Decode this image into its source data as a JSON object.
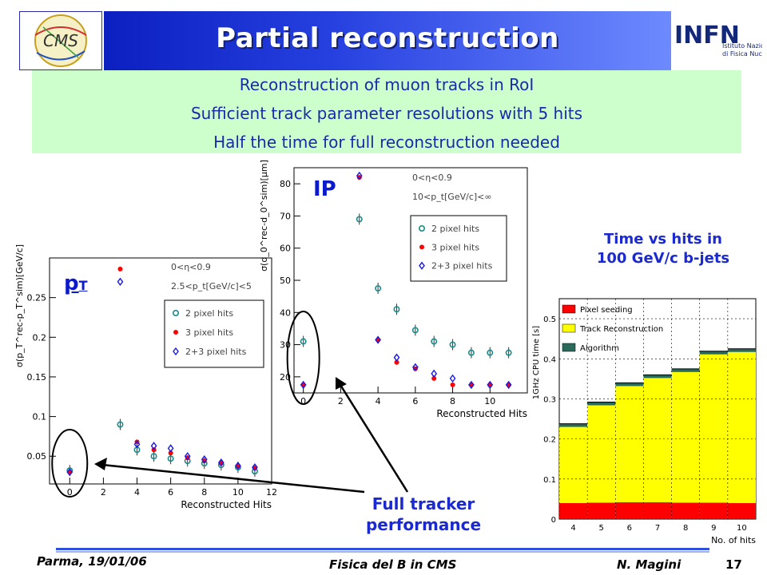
{
  "header": {
    "title": "Partial reconstruction",
    "cms_logo_text": "CMS",
    "infn_logo_text": "INFN",
    "infn_subtitle_1": "Istituto Nazionale",
    "infn_subtitle_2": "di Fisica Nucleare"
  },
  "bullets": [
    "Reconstruction of muon tracks in RoI",
    "Sufficient track parameter resolutions with 5 hits",
    "Half the time for full reconstruction needed"
  ],
  "labels": {
    "pt_label": "p",
    "pt_sub": "T",
    "ip_label": "IP",
    "time_note_1": "Time vs hits in",
    "time_note_2": "100 GeV/c b-jets",
    "tracker_note_1": "Full tracker",
    "tracker_note_2": "performance"
  },
  "footer": {
    "left": "Parma, 19/01/06",
    "center": "Fisica del B in CMS",
    "author": "N. Magini",
    "page": "17"
  },
  "colors": {
    "title_bar": "#1f3ad8",
    "green_box": "#ccffcc",
    "note_text": "#1a2ad0",
    "series_2pix": "#1a8a8a",
    "series_3pix": "#ff0000",
    "series_23pix": "#1a1ae6",
    "bar_pixel_seeding": "#ff0000",
    "bar_track_reco": "#ffff00",
    "bar_algorithm": "#2a6a5a"
  },
  "chart_data": [
    {
      "type": "scatter",
      "xlabel": "Reconstructed Hits",
      "ylabel": "σ(p_T^rec-p_T^sim)[GeV/c]",
      "xlim": [
        -1.2,
        12
      ],
      "ylim": [
        0.015,
        0.3
      ],
      "x_ticks": [
        0,
        2,
        4,
        6,
        8,
        10,
        12
      ],
      "y_ticks": [
        0.05,
        0.1,
        0.15,
        0.2,
        0.25
      ],
      "annotations": [
        "0<η<0.9",
        "2.5<p_t[GeV/c]<5"
      ],
      "legend_position": "top-right",
      "series": [
        {
          "name": "2 pixel hits",
          "x": [
            0,
            3,
            4,
            5,
            6,
            7,
            8,
            9,
            10,
            11
          ],
          "y": [
            0.032,
            0.09,
            0.058,
            0.05,
            0.047,
            0.044,
            0.041,
            0.039,
            0.036,
            0.031
          ]
        },
        {
          "name": "3 pixel hits",
          "x": [
            0,
            3,
            4,
            5,
            6,
            7,
            8,
            9,
            10,
            11
          ],
          "y": [
            0.03,
            0.286,
            0.068,
            0.058,
            0.054,
            0.048,
            0.044,
            0.041,
            0.037,
            0.035
          ]
        },
        {
          "name": "2+3 pixel hits",
          "x": [
            0,
            3,
            4,
            5,
            6,
            7,
            8,
            9,
            10,
            11
          ],
          "y": [
            0.03,
            0.27,
            0.065,
            0.063,
            0.06,
            0.05,
            0.046,
            0.042,
            0.038,
            0.036
          ]
        }
      ]
    },
    {
      "type": "scatter",
      "xlabel": "Reconstructed Hits",
      "ylabel": "σ(d_0^rec-d_0^sim)[μm]",
      "xlim": [
        -0.5,
        12
      ],
      "ylim": [
        15,
        85
      ],
      "x_ticks": [
        0,
        2,
        4,
        6,
        8,
        10
      ],
      "y_ticks": [
        20,
        30,
        40,
        50,
        60,
        70,
        80
      ],
      "annotations": [
        "0<η<0.9",
        "10<p_t[GeV/c]<∞"
      ],
      "legend_position": "top-right",
      "series": [
        {
          "name": "2 pixel hits",
          "x": [
            0,
            3,
            4,
            5,
            6,
            7,
            8,
            9,
            10,
            11
          ],
          "y": [
            31,
            69,
            47.5,
            41,
            34.5,
            31,
            30,
            27.5,
            27.5,
            27.5
          ]
        },
        {
          "name": "3 pixel hits",
          "x": [
            0,
            3,
            4,
            5,
            6,
            7,
            8,
            9,
            10,
            11
          ],
          "y": [
            17.5,
            82,
            31.5,
            24.5,
            22.5,
            19.5,
            17.5,
            17.5,
            17.5,
            17.5
          ]
        },
        {
          "name": "2+3 pixel hits",
          "x": [
            0,
            3,
            4,
            5,
            6,
            7,
            8,
            9,
            10,
            11
          ],
          "y": [
            17.5,
            82.5,
            31.5,
            26,
            23,
            21,
            19.5,
            17.5,
            17.5,
            17.5
          ]
        }
      ]
    },
    {
      "type": "bar",
      "stacked": true,
      "xlabel": "No. of hits",
      "ylabel": "1GHz CPU time [s]",
      "ylim": [
        0,
        0.55
      ],
      "y_ticks": [
        0,
        0.1,
        0.2,
        0.3,
        0.4,
        0.5
      ],
      "categories": [
        "4",
        "5",
        "6",
        "7",
        "8",
        "9",
        "10"
      ],
      "legend_position": "top-left",
      "series": [
        {
          "name": "Pixel seeding",
          "values": [
            0.04,
            0.041,
            0.042,
            0.042,
            0.041,
            0.041,
            0.04
          ]
        },
        {
          "name": "Track Reconstruction",
          "values": [
            0.19,
            0.243,
            0.29,
            0.31,
            0.326,
            0.37,
            0.377
          ]
        },
        {
          "name": "Algorithm",
          "values": [
            0.008,
            0.008,
            0.008,
            0.008,
            0.008,
            0.008,
            0.008
          ]
        }
      ]
    }
  ]
}
